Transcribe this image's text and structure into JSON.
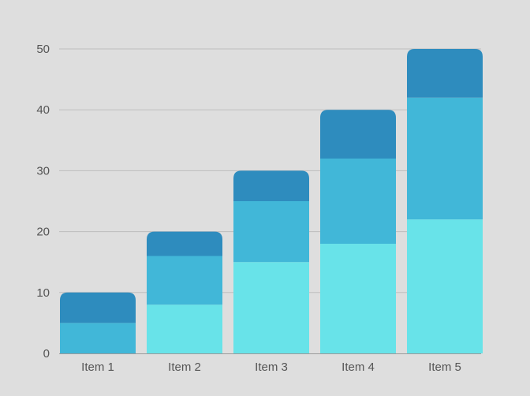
{
  "chart_data": {
    "type": "bar",
    "stacked": true,
    "title": "",
    "xlabel": "",
    "ylabel": "",
    "categories": [
      "Item 1",
      "Item 2",
      "Item 3",
      "Item 4",
      "Item 5"
    ],
    "series": [
      {
        "values": [
          0,
          8,
          15,
          18,
          22
        ],
        "color": "#68e3e9"
      },
      {
        "values": [
          5,
          8,
          10,
          14,
          20
        ],
        "color": "#41b7d8"
      },
      {
        "values": [
          5,
          4,
          5,
          8,
          8
        ],
        "color": "#2e8cbe"
      }
    ],
    "ylim": [
      0,
      50
    ],
    "yticks": [
      0,
      10,
      20,
      30,
      40,
      50
    ],
    "grid": true,
    "legend": "none"
  }
}
